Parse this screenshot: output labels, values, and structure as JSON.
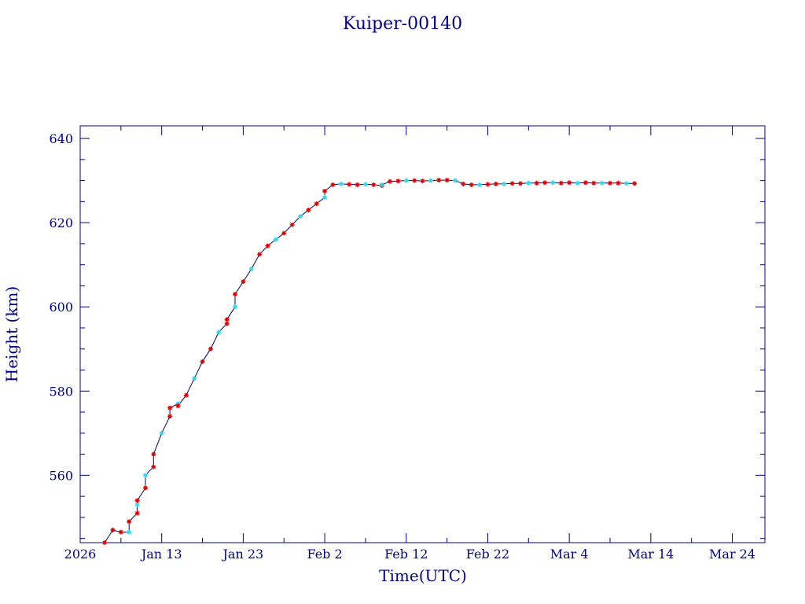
{
  "chart_data": {
    "type": "scatter",
    "title": "Kuiper-00140",
    "xlabel": "Time(UTC)",
    "ylabel": "Height (km)",
    "xlim": [
      "2026-01-03",
      "2026-03-28"
    ],
    "ylim": [
      544,
      643
    ],
    "grid": false,
    "colors": {
      "axis": "#00008b",
      "text": "#00008b",
      "line": "#000066",
      "marker_red": "#e00000",
      "marker_cyan": "#33d6e6"
    },
    "x_ticks": [
      {
        "date": "2026-01-03",
        "label": "2026"
      },
      {
        "date": "2026-01-13",
        "label": "Jan 13"
      },
      {
        "date": "2026-01-23",
        "label": "Jan 23"
      },
      {
        "date": "2026-02-02",
        "label": "Feb  2"
      },
      {
        "date": "2026-02-12",
        "label": "Feb 12"
      },
      {
        "date": "2026-02-22",
        "label": "Feb 22"
      },
      {
        "date": "2026-03-04",
        "label": "Mar  4"
      },
      {
        "date": "2026-03-14",
        "label": "Mar 14"
      },
      {
        "date": "2026-03-24",
        "label": "Mar 24"
      }
    ],
    "y_ticks": [
      560,
      580,
      600,
      620,
      640
    ],
    "series": [
      {
        "x": [
          "2026-01-06",
          "2026-01-07",
          "2026-01-07",
          "2026-01-08",
          "2026-01-09",
          "2026-01-09",
          "2026-01-10",
          "2026-01-10",
          "2026-01-10",
          "2026-01-11",
          "2026-01-11",
          "2026-01-12",
          "2026-01-12",
          "2026-01-13",
          "2026-01-14",
          "2026-01-14",
          "2026-01-15",
          "2026-01-15",
          "2026-01-16",
          "2026-01-17",
          "2026-01-18",
          "2026-01-19",
          "2026-01-20",
          "2026-01-21",
          "2026-01-21",
          "2026-01-22",
          "2026-01-22",
          "2026-01-23",
          "2026-01-24",
          "2026-01-25",
          "2026-01-26",
          "2026-01-27",
          "2026-01-28",
          "2026-01-29",
          "2026-01-30",
          "2026-01-31",
          "2026-02-01",
          "2026-02-02",
          "2026-02-02",
          "2026-02-03",
          "2026-02-04",
          "2026-02-05",
          "2026-02-06",
          "2026-02-07",
          "2026-02-08",
          "2026-02-09",
          "2026-02-09",
          "2026-02-10",
          "2026-02-11",
          "2026-02-12",
          "2026-02-13",
          "2026-02-14",
          "2026-02-15",
          "2026-02-16",
          "2026-02-17",
          "2026-02-18",
          "2026-02-19",
          "2026-02-20",
          "2026-02-21",
          "2026-02-22",
          "2026-02-23",
          "2026-02-24",
          "2026-02-25",
          "2026-02-26",
          "2026-02-27",
          "2026-02-28",
          "2026-03-01",
          "2026-03-02",
          "2026-03-03",
          "2026-03-04",
          "2026-03-05",
          "2026-03-06",
          "2026-03-07",
          "2026-03-08",
          "2026-03-09",
          "2026-03-10",
          "2026-03-11",
          "2026-03-12"
        ],
        "y": [
          544,
          547,
          547,
          546.5,
          546.5,
          549,
          551,
          553,
          554,
          557,
          560,
          562,
          565,
          570,
          574,
          576,
          577,
          576.5,
          579,
          583,
          587,
          590,
          594,
          596,
          597,
          600,
          603,
          606,
          609,
          612.5,
          614.5,
          616,
          617.5,
          619.5,
          621.5,
          623,
          624.5,
          626,
          627.5,
          629,
          629.2,
          629.1,
          629.0,
          629.1,
          629.0,
          628.8,
          629.0,
          629.8,
          629.9,
          630.0,
          630.0,
          629.9,
          630.0,
          630.1,
          630.1,
          630.0,
          629.2,
          629.0,
          629.0,
          629.1,
          629.2,
          629.2,
          629.3,
          629.3,
          629.4,
          629.4,
          629.5,
          629.5,
          629.4,
          629.5,
          629.4,
          629.5,
          629.4,
          629.4,
          629.4,
          629.4,
          629.3,
          629.3
        ]
      }
    ]
  }
}
